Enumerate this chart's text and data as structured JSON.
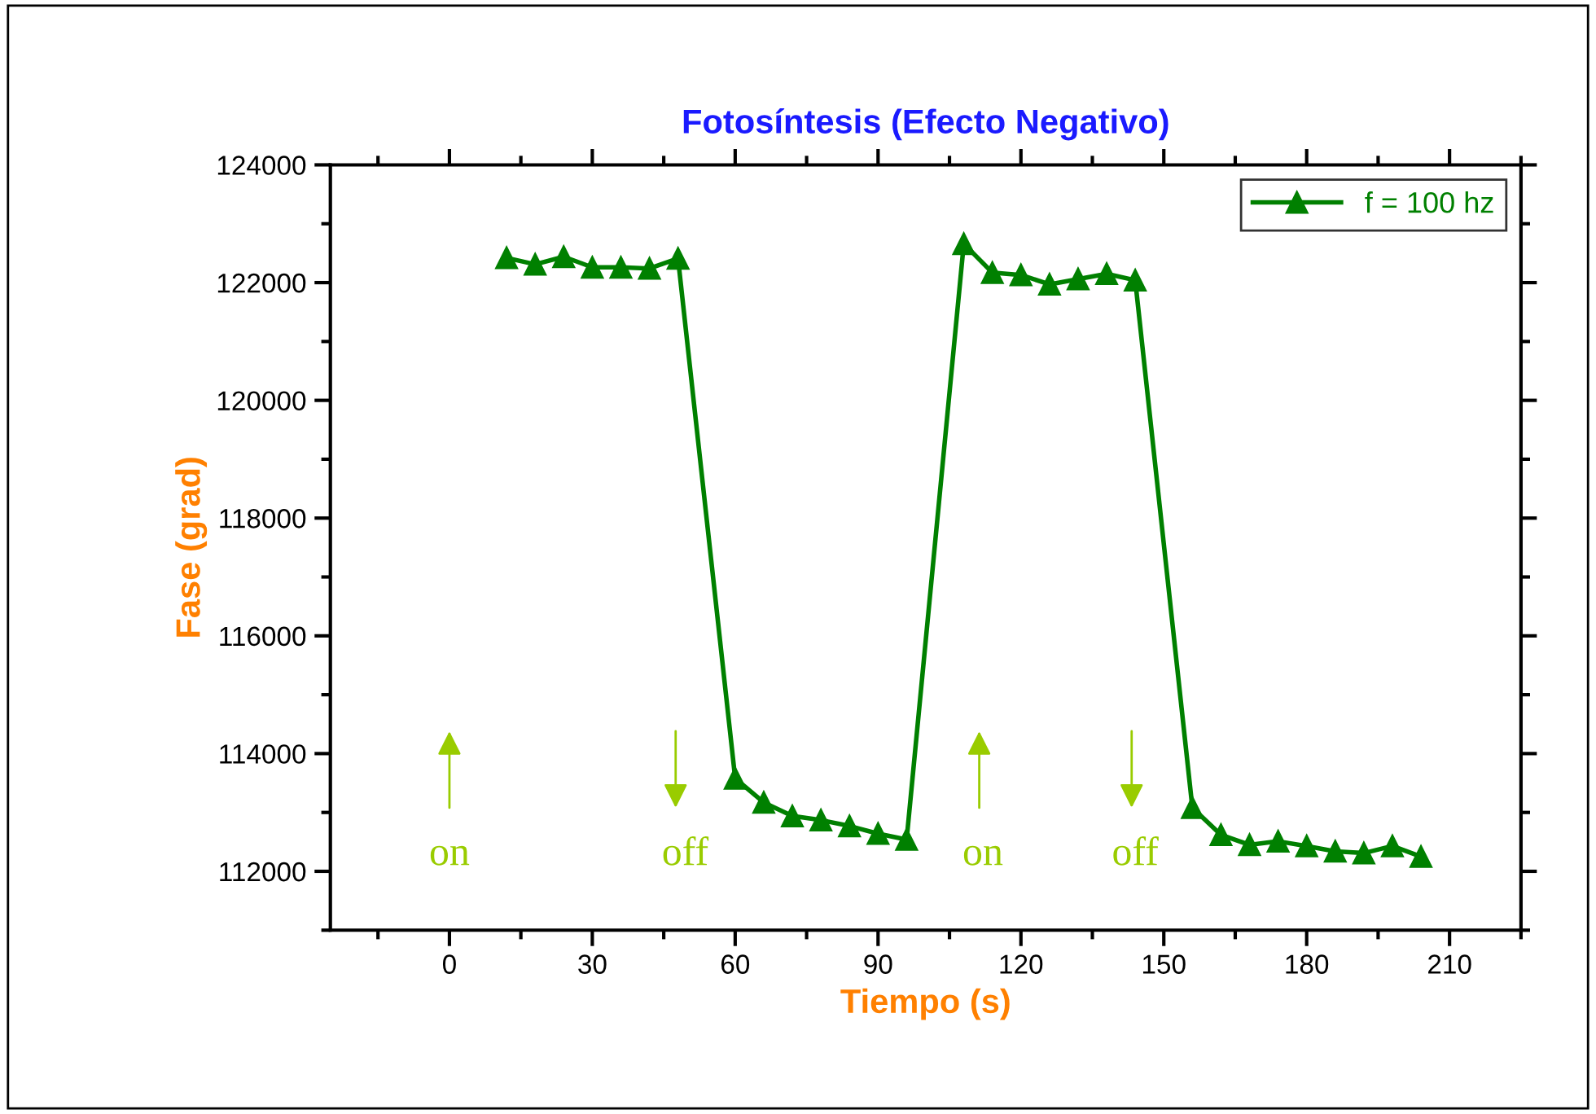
{
  "chart_data": {
    "type": "line",
    "title": "Fotosíntesis (Efecto Negativo)",
    "xlabel": "Tiempo (s)",
    "ylabel": "Fase (grad)",
    "x": [
      12,
      18,
      24,
      30,
      36,
      42,
      48,
      60,
      66,
      72,
      78,
      84,
      90,
      96,
      108,
      114,
      120,
      126,
      132,
      138,
      144,
      156,
      162,
      168,
      174,
      180,
      186,
      192,
      198,
      204
    ],
    "series": [
      {
        "name": "f = 100 hz",
        "color": "#008000",
        "values": [
          122420,
          122310,
          122440,
          122260,
          122260,
          122240,
          122410,
          113580,
          113170,
          112940,
          112870,
          112770,
          112640,
          112540,
          122660,
          122170,
          122130,
          121970,
          122060,
          122150,
          122040,
          113080,
          112620,
          112450,
          112510,
          112430,
          112340,
          112310,
          112430,
          112250
        ]
      }
    ],
    "xlim": [
      -25,
      225
    ],
    "xticks": [
      0,
      30,
      60,
      90,
      120,
      150,
      180,
      210
    ],
    "ylim": [
      111000,
      124000
    ],
    "yticks": [
      112000,
      114000,
      116000,
      118000,
      120000,
      122000,
      124000
    ],
    "annotations": [
      "on",
      "off",
      "on",
      "off"
    ],
    "marker": "triangle",
    "line_style": "solid",
    "legend": "top right",
    "grid": false
  }
}
